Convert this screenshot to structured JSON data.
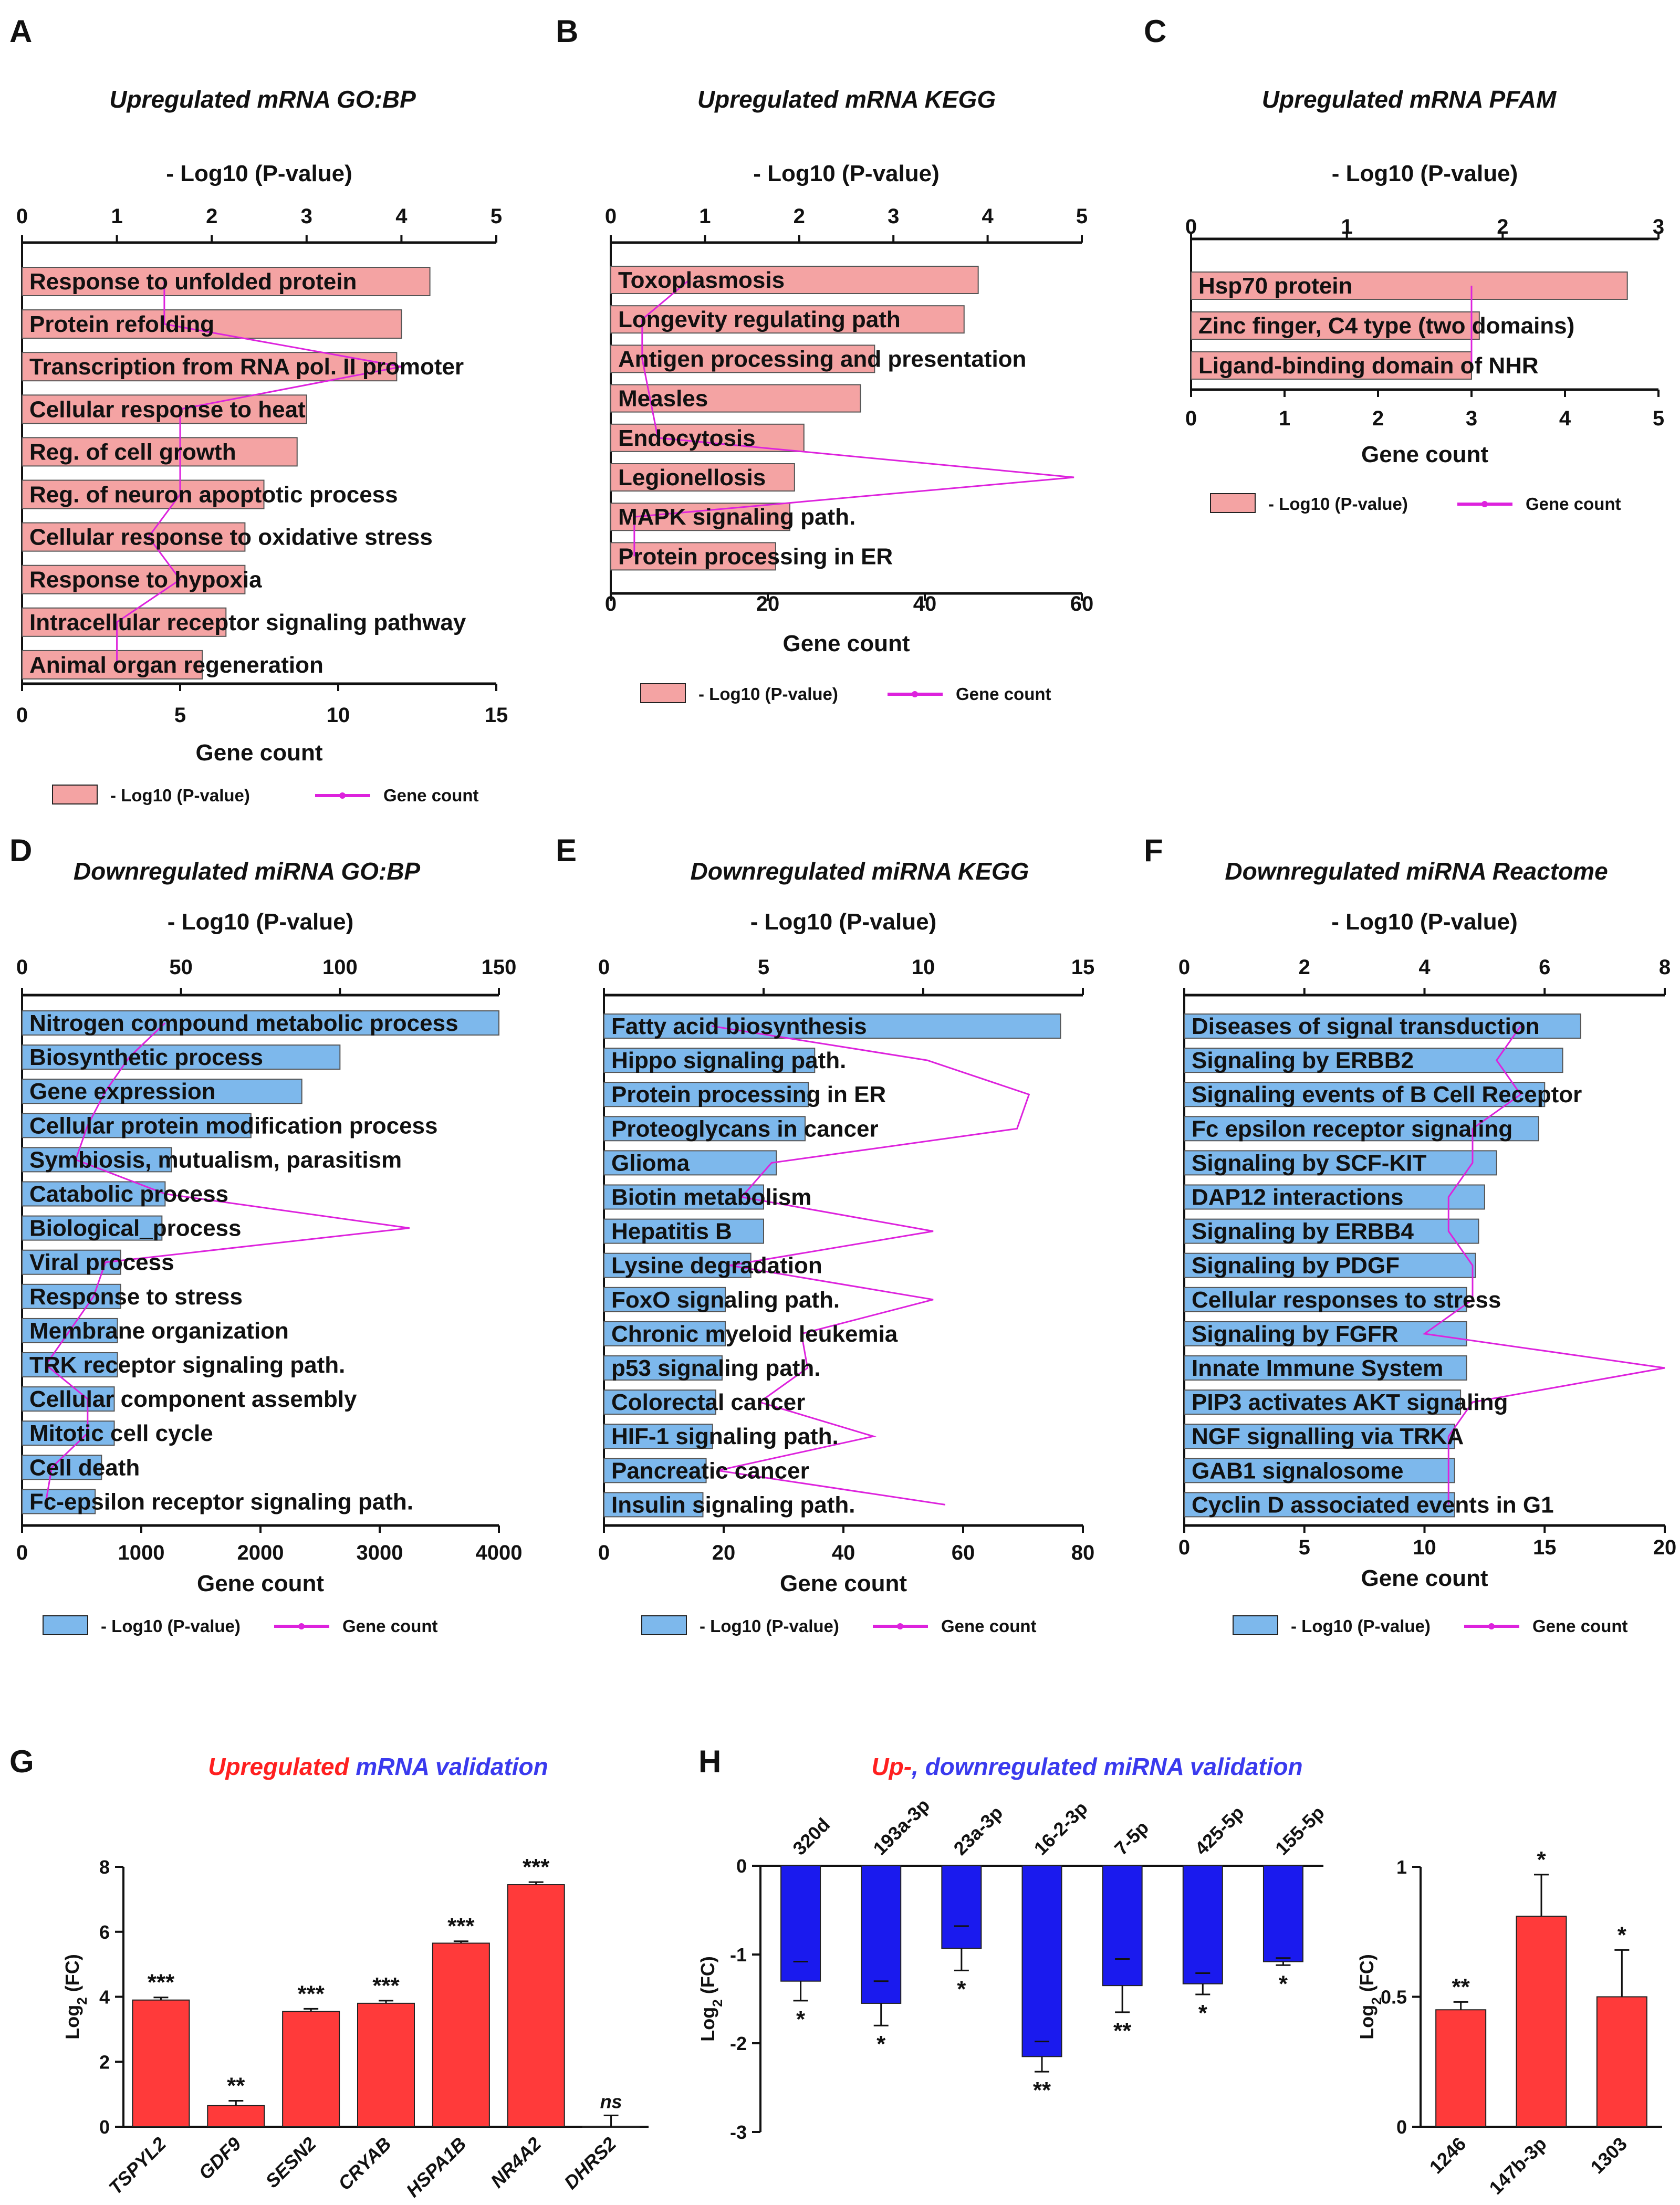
{
  "colors": {
    "mrna_bar": "#f4a3a3",
    "mirna_bar": "#7db8ec",
    "line": "#dd22dd",
    "val_bar": "#ff3a3a",
    "down_bar": "#1a1aee",
    "title_blue": "#3a3aee",
    "title_magenta": "#e040e0",
    "title_green": "#22cc22",
    "title_red": "#ff2020"
  },
  "chart_data": [
    {
      "panel": "A",
      "type": "bar",
      "orientation": "horizontal",
      "title": "Upregulated mRNA GO:BP",
      "top_axis": {
        "label": "- Log10 (P-value)",
        "ticks": [
          "0",
          "1",
          "2",
          "3",
          "4",
          "5"
        ],
        "range": [
          0,
          5
        ]
      },
      "bottom_axis": {
        "label": "Gene count",
        "ticks": [
          "0",
          "5",
          "10",
          "15"
        ],
        "range": [
          0,
          15
        ]
      },
      "legend": [
        "- Log10 (P-value)",
        "Gene count"
      ],
      "categories": [
        "Response to unfolded protein",
        "Protein refolding",
        "Transcription from RNA pol. II promoter",
        "Cellular response to heat",
        "Reg. of cell growth",
        "Reg. of neuron apoptotic process",
        "Cellular response to oxidative stress",
        "Response to hypoxia",
        "Intracellular receptor signaling pathway",
        "Animal organ regeneration"
      ],
      "series": [
        {
          "name": "- Log10 (P-value)",
          "values": [
            4.3,
            4.0,
            3.95,
            3.0,
            2.9,
            2.55,
            2.35,
            2.35,
            2.15,
            1.9
          ]
        },
        {
          "name": "Gene count",
          "values": [
            4.5,
            4.5,
            12,
            5,
            5,
            5,
            4,
            5,
            3,
            3
          ]
        }
      ]
    },
    {
      "panel": "B",
      "type": "bar",
      "orientation": "horizontal",
      "title": "Upregulated mRNA KEGG",
      "top_axis": {
        "label": "- Log10 (P-value)",
        "ticks": [
          "0",
          "1",
          "2",
          "3",
          "4",
          "5"
        ],
        "range": [
          0,
          5
        ]
      },
      "bottom_axis": {
        "label": "Gene count",
        "ticks": [
          "0",
          "20",
          "40",
          "60"
        ],
        "range": [
          0,
          60
        ]
      },
      "legend": [
        "- Log10 (P-value)",
        "Gene count"
      ],
      "categories": [
        "Toxoplasmosis",
        "Longevity regulating path",
        "Antigen processing and presentation",
        "Measles",
        "Endocytosis",
        "Legionellosis",
        "MAPK signaling path.",
        "Protein processing in ER"
      ],
      "series": [
        {
          "name": "- Log10 (P-value)",
          "values": [
            3.9,
            3.75,
            2.8,
            2.65,
            2.05,
            1.95,
            1.9,
            1.75
          ]
        },
        {
          "name": "Gene count",
          "values": [
            10,
            4,
            4,
            5,
            6,
            59,
            3,
            3
          ]
        }
      ]
    },
    {
      "panel": "C",
      "type": "bar",
      "orientation": "horizontal",
      "title": "Upregulated mRNA PFAM",
      "top_axis": {
        "label": "- Log10 (P-value)",
        "ticks": [
          "0",
          "1",
          "2",
          "3"
        ],
        "range": [
          0,
          3
        ]
      },
      "bottom_axis": {
        "label": "Gene count",
        "ticks": [
          "0",
          "1",
          "2",
          "3",
          "4",
          "5"
        ],
        "range": [
          0,
          5
        ]
      },
      "legend": [
        "- Log10 (P-value)",
        "Gene count"
      ],
      "categories": [
        "Hsp70 protein",
        "Zinc finger, C4 type (two domains)",
        "Ligand-binding domain of NHR"
      ],
      "series": [
        {
          "name": "- Log10 (P-value)",
          "values": [
            2.8,
            1.85,
            1.8
          ]
        },
        {
          "name": "Gene count",
          "values": [
            3,
            3,
            3
          ]
        }
      ]
    },
    {
      "panel": "D",
      "type": "bar",
      "orientation": "horizontal",
      "title": "Downregulated miRNA GO:BP",
      "top_axis": {
        "label": "- Log10 (P-value)",
        "ticks": [
          "0",
          "50",
          "100",
          "150"
        ],
        "range": [
          0,
          150
        ]
      },
      "bottom_axis": {
        "label": "Gene count",
        "ticks": [
          "0",
          "1000",
          "2000",
          "3000",
          "4000"
        ],
        "range": [
          0,
          4000
        ]
      },
      "legend": [
        "- Log10 (P-value)",
        "Gene count"
      ],
      "categories": [
        "Nitrogen compound metabolic process",
        "Biosynthetic process",
        "Gene expression",
        "Cellular protein modification process",
        "Symbiosis, mutualism, parasitism",
        "Catabolic process",
        "Biological_process",
        "Viral process",
        "Response to stress",
        "Membrane organization",
        "TRK receptor signaling path.",
        "Cellular component assembly",
        "Mitotic cell cycle",
        "Cell death",
        "Fc-epsilon receptor signaling path."
      ],
      "series": [
        {
          "name": "- Log10 (P-value)",
          "values": [
            150,
            100,
            88,
            72,
            47,
            45,
            44,
            31,
            31,
            30,
            30,
            29,
            29,
            25,
            23
          ]
        },
        {
          "name": "Gene count",
          "values": [
            1200,
            900,
            700,
            550,
            450,
            1200,
            3250,
            700,
            600,
            400,
            200,
            550,
            550,
            250,
            200
          ]
        }
      ]
    },
    {
      "panel": "E",
      "type": "bar",
      "orientation": "horizontal",
      "title": "Downregulated miRNA KEGG",
      "top_axis": {
        "label": "- Log10 (P-value)",
        "ticks": [
          "0",
          "5",
          "10",
          "15"
        ],
        "range": [
          0,
          15
        ]
      },
      "bottom_axis": {
        "label": "Gene count",
        "ticks": [
          "0",
          "20",
          "40",
          "60",
          "80"
        ],
        "range": [
          0,
          80
        ]
      },
      "legend": [
        "- Log10 (P-value)",
        "Gene count"
      ],
      "categories": [
        "Fatty acid biosynthesis",
        "Hippo signaling path.",
        "Protein processing in ER",
        "Proteoglycans in cancer",
        "Glioma",
        "Biotin metabolism",
        "Hepatitis B",
        "Lysine degradation",
        "FoxO signaling path.",
        "Chronic myeloid leukemia",
        "p53 signaling path.",
        "Colorectal cancer",
        "HIF-1 signaling path.",
        "Pancreatic cancer",
        "Insulin signaling path."
      ],
      "series": [
        {
          "name": "- Log10 (P-value)",
          "values": [
            14.3,
            6.6,
            6.4,
            6.3,
            5.4,
            5.0,
            5.0,
            4.6,
            3.8,
            3.8,
            3.7,
            3.5,
            3.4,
            3.2,
            3.1
          ]
        },
        {
          "name": "Gene count",
          "values": [
            18,
            54,
            71,
            69,
            28,
            23,
            55,
            21,
            55,
            33,
            34,
            26,
            45,
            19,
            57
          ]
        }
      ]
    },
    {
      "panel": "F",
      "type": "bar",
      "orientation": "horizontal",
      "title": "Downregulated miRNA Reactome",
      "top_axis": {
        "label": "- Log10 (P-value)",
        "ticks": [
          "0",
          "2",
          "4",
          "6",
          "8"
        ],
        "range": [
          0,
          8
        ]
      },
      "bottom_axis": {
        "label": "Gene count",
        "ticks": [
          "0",
          "5",
          "10",
          "15",
          "20"
        ],
        "range": [
          0,
          20
        ]
      },
      "legend": [
        "- Log10 (P-value)",
        "Gene count"
      ],
      "categories": [
        "Diseases of signal transduction",
        "Signaling by ERBB2",
        "Signaling events of B Cell Receptor",
        "Fc epsilon receptor signaling",
        "Signaling by SCF-KIT",
        "DAP12 interactions",
        "Signaling by ERBB4",
        "Signaling by PDGF",
        "Cellular responses to stress",
        "Signaling by FGFR",
        "Innate Immune System",
        "PIP3 activates AKT signaling",
        "NGF signalling via TRKA",
        "GAB1 signalosome",
        "Cyclin D associated events in G1"
      ],
      "series": [
        {
          "name": "- Log10 (P-value)",
          "values": [
            6.6,
            6.3,
            6.0,
            5.9,
            5.2,
            5.0,
            4.9,
            4.85,
            4.7,
            4.7,
            4.7,
            4.6,
            4.5,
            4.5,
            4.5
          ]
        },
        {
          "name": "Gene count",
          "values": [
            14,
            13,
            14,
            12,
            12,
            11,
            11,
            12,
            12,
            10,
            20,
            12,
            11,
            11,
            11
          ]
        }
      ]
    },
    {
      "panel": "G",
      "type": "bar",
      "title_parts": [
        "Upregulated",
        " mRNA validation"
      ],
      "ylabel_main": "Log",
      "ylabel_sub": "2",
      "ylabel_tail": " (FC)",
      "ylim": [
        0,
        8
      ],
      "yticks": [
        "0",
        "2",
        "4",
        "6",
        "8"
      ],
      "categories": [
        "TSPYL2",
        "GDF9",
        "SESN2",
        "CRYAB",
        "HSPA1B",
        "NR4A2",
        "DHRS2"
      ],
      "values": [
        3.9,
        0.65,
        3.55,
        3.8,
        5.65,
        7.45,
        0.0
      ],
      "errors": [
        0.08,
        0.15,
        0.08,
        0.08,
        0.06,
        0.08,
        0.35
      ],
      "significance": [
        "***",
        "**",
        "***",
        "***",
        "***",
        "***",
        "ns"
      ]
    },
    {
      "panel": "H",
      "type": "bar",
      "title_parts": [
        "Up-",
        ", downregulated miRNA validation"
      ],
      "charts": [
        {
          "name": "downregulated",
          "ylabel_main": "Log",
          "ylabel_sub": "2",
          "ylabel_tail": " (FC)",
          "ylim": [
            -3,
            0
          ],
          "yticks": [
            "0",
            "-1",
            "-2",
            "-3"
          ],
          "categories": [
            "320d",
            "193a-3p",
            "23a-3p",
            "16-2-3p",
            "7-5p",
            "425-5p",
            "155-5p"
          ],
          "values": [
            -1.3,
            -1.55,
            -0.93,
            -2.15,
            -1.35,
            -1.33,
            -1.08
          ],
          "errors": [
            0.22,
            0.25,
            0.25,
            0.17,
            0.3,
            0.12,
            0.04
          ],
          "significance": [
            "*",
            "*",
            "*",
            "**",
            "**",
            "*",
            "*"
          ]
        },
        {
          "name": "upregulated",
          "ylabel_main": "Log",
          "ylabel_sub": "2",
          "ylabel_tail": " (FC)",
          "ylim": [
            0,
            1
          ],
          "yticks": [
            "0",
            "0.5",
            "1"
          ],
          "categories": [
            "1246",
            "147b-3p",
            "1303"
          ],
          "values": [
            0.45,
            0.81,
            0.5
          ],
          "errors": [
            0.03,
            0.16,
            0.18
          ],
          "significance": [
            "**",
            "*",
            "*"
          ]
        }
      ]
    }
  ]
}
